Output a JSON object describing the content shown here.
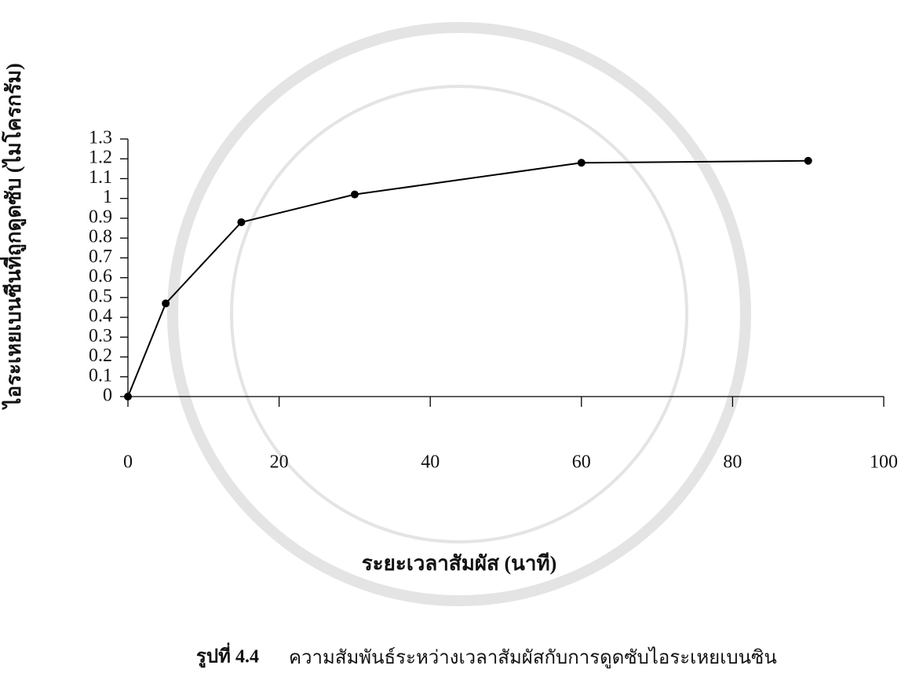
{
  "chart_data": {
    "type": "line",
    "x_label": "ระยะเวลาสัมผัส (นาที)",
    "y_label": "ไอระเหยเบนซีนที่ถูกดูดซับ (ไมโครกรัม)",
    "caption_label": "รูปที่ 4.4",
    "caption": "ความสัมพันธ์ระหว่างเวลาสัมผัสกับการดูดซับไอระเหยเบนซิน",
    "x": [
      0,
      5,
      15,
      30,
      60,
      90
    ],
    "series": [
      {
        "color": "#000000",
        "values": [
          0,
          0.47,
          0.88,
          1.02,
          1.18,
          1.19
        ]
      }
    ],
    "xlim": [
      0,
      100
    ],
    "xticks": [
      0,
      20,
      40,
      60,
      80,
      100
    ],
    "ylim": [
      0,
      1.3
    ],
    "yticks": [
      0,
      0.1,
      0.2,
      0.3,
      0.4,
      0.5,
      0.6,
      0.7,
      0.8,
      0.9,
      1,
      1.1,
      1.2,
      1.3
    ]
  }
}
